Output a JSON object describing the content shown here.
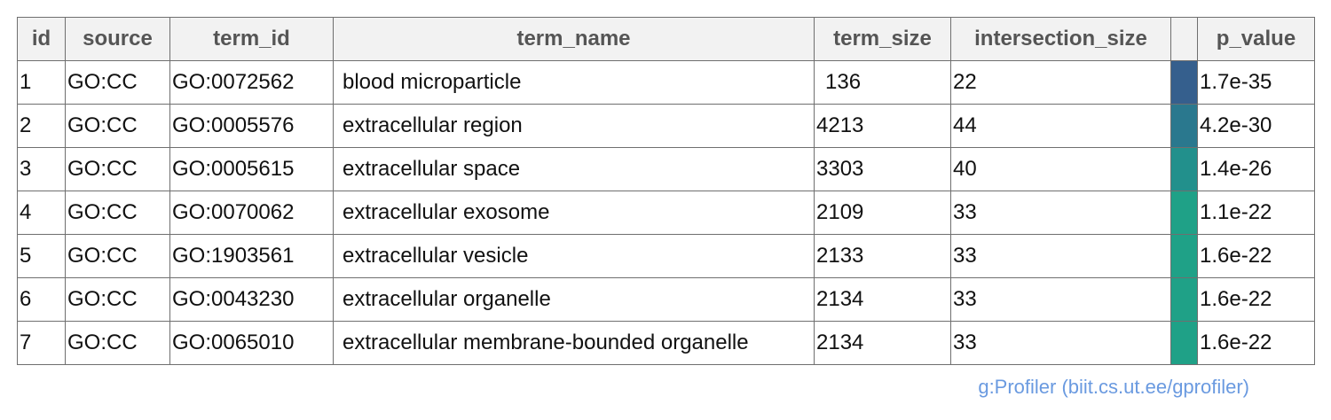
{
  "chart_data": {
    "type": "table",
    "columns": [
      "id",
      "source",
      "term_id",
      "term_name",
      "term_size",
      "intersection_size",
      "",
      "p_value"
    ],
    "rows": [
      {
        "id": "1",
        "source": "GO:CC",
        "term_id": "GO:0072562",
        "term_name": "blood microparticle",
        "term_size": "136",
        "intersection_size": "22",
        "p_value": "1.7e-35",
        "color": "#355f8d"
      },
      {
        "id": "2",
        "source": "GO:CC",
        "term_id": "GO:0005576",
        "term_name": "extracellular region",
        "term_size": "4213",
        "intersection_size": "44",
        "p_value": "4.2e-30",
        "color": "#2a788e"
      },
      {
        "id": "3",
        "source": "GO:CC",
        "term_id": "GO:0005615",
        "term_name": "extracellular space",
        "term_size": "3303",
        "intersection_size": "40",
        "p_value": "1.4e-26",
        "color": "#22908c"
      },
      {
        "id": "4",
        "source": "GO:CC",
        "term_id": "GO:0070062",
        "term_name": "extracellular exosome",
        "term_size": "2109",
        "intersection_size": "33",
        "p_value": "1.1e-22",
        "color": "#1fa187"
      },
      {
        "id": "5",
        "source": "GO:CC",
        "term_id": "GO:1903561",
        "term_name": "extracellular vesicle",
        "term_size": "2133",
        "intersection_size": "33",
        "p_value": "1.6e-22",
        "color": "#1fa187"
      },
      {
        "id": "6",
        "source": "GO:CC",
        "term_id": "GO:0043230",
        "term_name": "extracellular organelle",
        "term_size": "2134",
        "intersection_size": "33",
        "p_value": "1.6e-22",
        "color": "#1fa187"
      },
      {
        "id": "7",
        "source": "GO:CC",
        "term_id": "GO:0065010",
        "term_name": "extracellular membrane-bounded organelle",
        "term_size": "2134",
        "intersection_size": "33",
        "p_value": "1.6e-22",
        "color": "#1fa187"
      }
    ]
  },
  "footer": {
    "attribution": "g:Profiler (biit.cs.ut.ee/gprofiler)"
  }
}
